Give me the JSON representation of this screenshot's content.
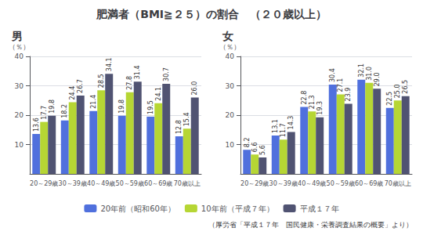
{
  "title": "肥満者（BMI≧２５）の割合　（２０歳以上）",
  "subtitle": "（厚労省「平成１７年　国民健康・栄養調査結果の概要」より）",
  "chart_data": [
    {
      "type": "bar",
      "title": "男",
      "ylabel": "（％）",
      "categories": [
        "20～29歳",
        "30～39歳",
        "40～49歳",
        "50～59歳",
        "60～69歳",
        "70歳以上"
      ],
      "series": [
        {
          "name": "20年前（昭和60年）",
          "values": [
            13.6,
            18.2,
            21.4,
            19.8,
            19.5,
            12.8
          ]
        },
        {
          "name": "10年前（平成７年）",
          "values": [
            17.7,
            24.4,
            28.5,
            27.8,
            24.1,
            15.4
          ]
        },
        {
          "name": "平成１７年",
          "values": [
            19.8,
            26.7,
            34.1,
            31.4,
            30.7,
            26.0
          ],
          "value_labels": [
            "19.8",
            "26.7",
            "34.1",
            "31.4",
            "30.7",
            "26.0"
          ]
        }
      ],
      "ylim": [
        0,
        40
      ],
      "yticks": [
        10,
        20,
        30,
        40
      ],
      "grid": true,
      "data_labels": true,
      "legend": "bottom"
    },
    {
      "type": "bar",
      "title": "女",
      "ylabel": "（％）",
      "categories": [
        "20～29歳",
        "30～39歳",
        "40～49歳",
        "50～59歳",
        "60～69歳",
        "70歳以上"
      ],
      "series": [
        {
          "name": "20年前（昭和60年）",
          "values": [
            8.2,
            13.1,
            22.8,
            30.4,
            32.1,
            22.5
          ]
        },
        {
          "name": "10年前（平成７年）",
          "values": [
            6.6,
            11.7,
            21.3,
            27.1,
            31.0,
            25.0
          ],
          "value_labels": [
            "6.6",
            "11.7",
            "21.3",
            "27.1",
            "31.0",
            "25.0"
          ]
        },
        {
          "name": "平成１７年",
          "values": [
            5.6,
            14.3,
            19.3,
            23.9,
            29.0,
            26.5
          ],
          "value_labels": [
            "5.6",
            "14.3",
            "19.3",
            "23.9",
            "29.0",
            "26.5"
          ]
        }
      ],
      "ylim": [
        0,
        40
      ],
      "yticks": [
        10,
        20,
        30,
        40
      ],
      "grid": true,
      "data_labels": true,
      "legend": "bottom"
    }
  ]
}
